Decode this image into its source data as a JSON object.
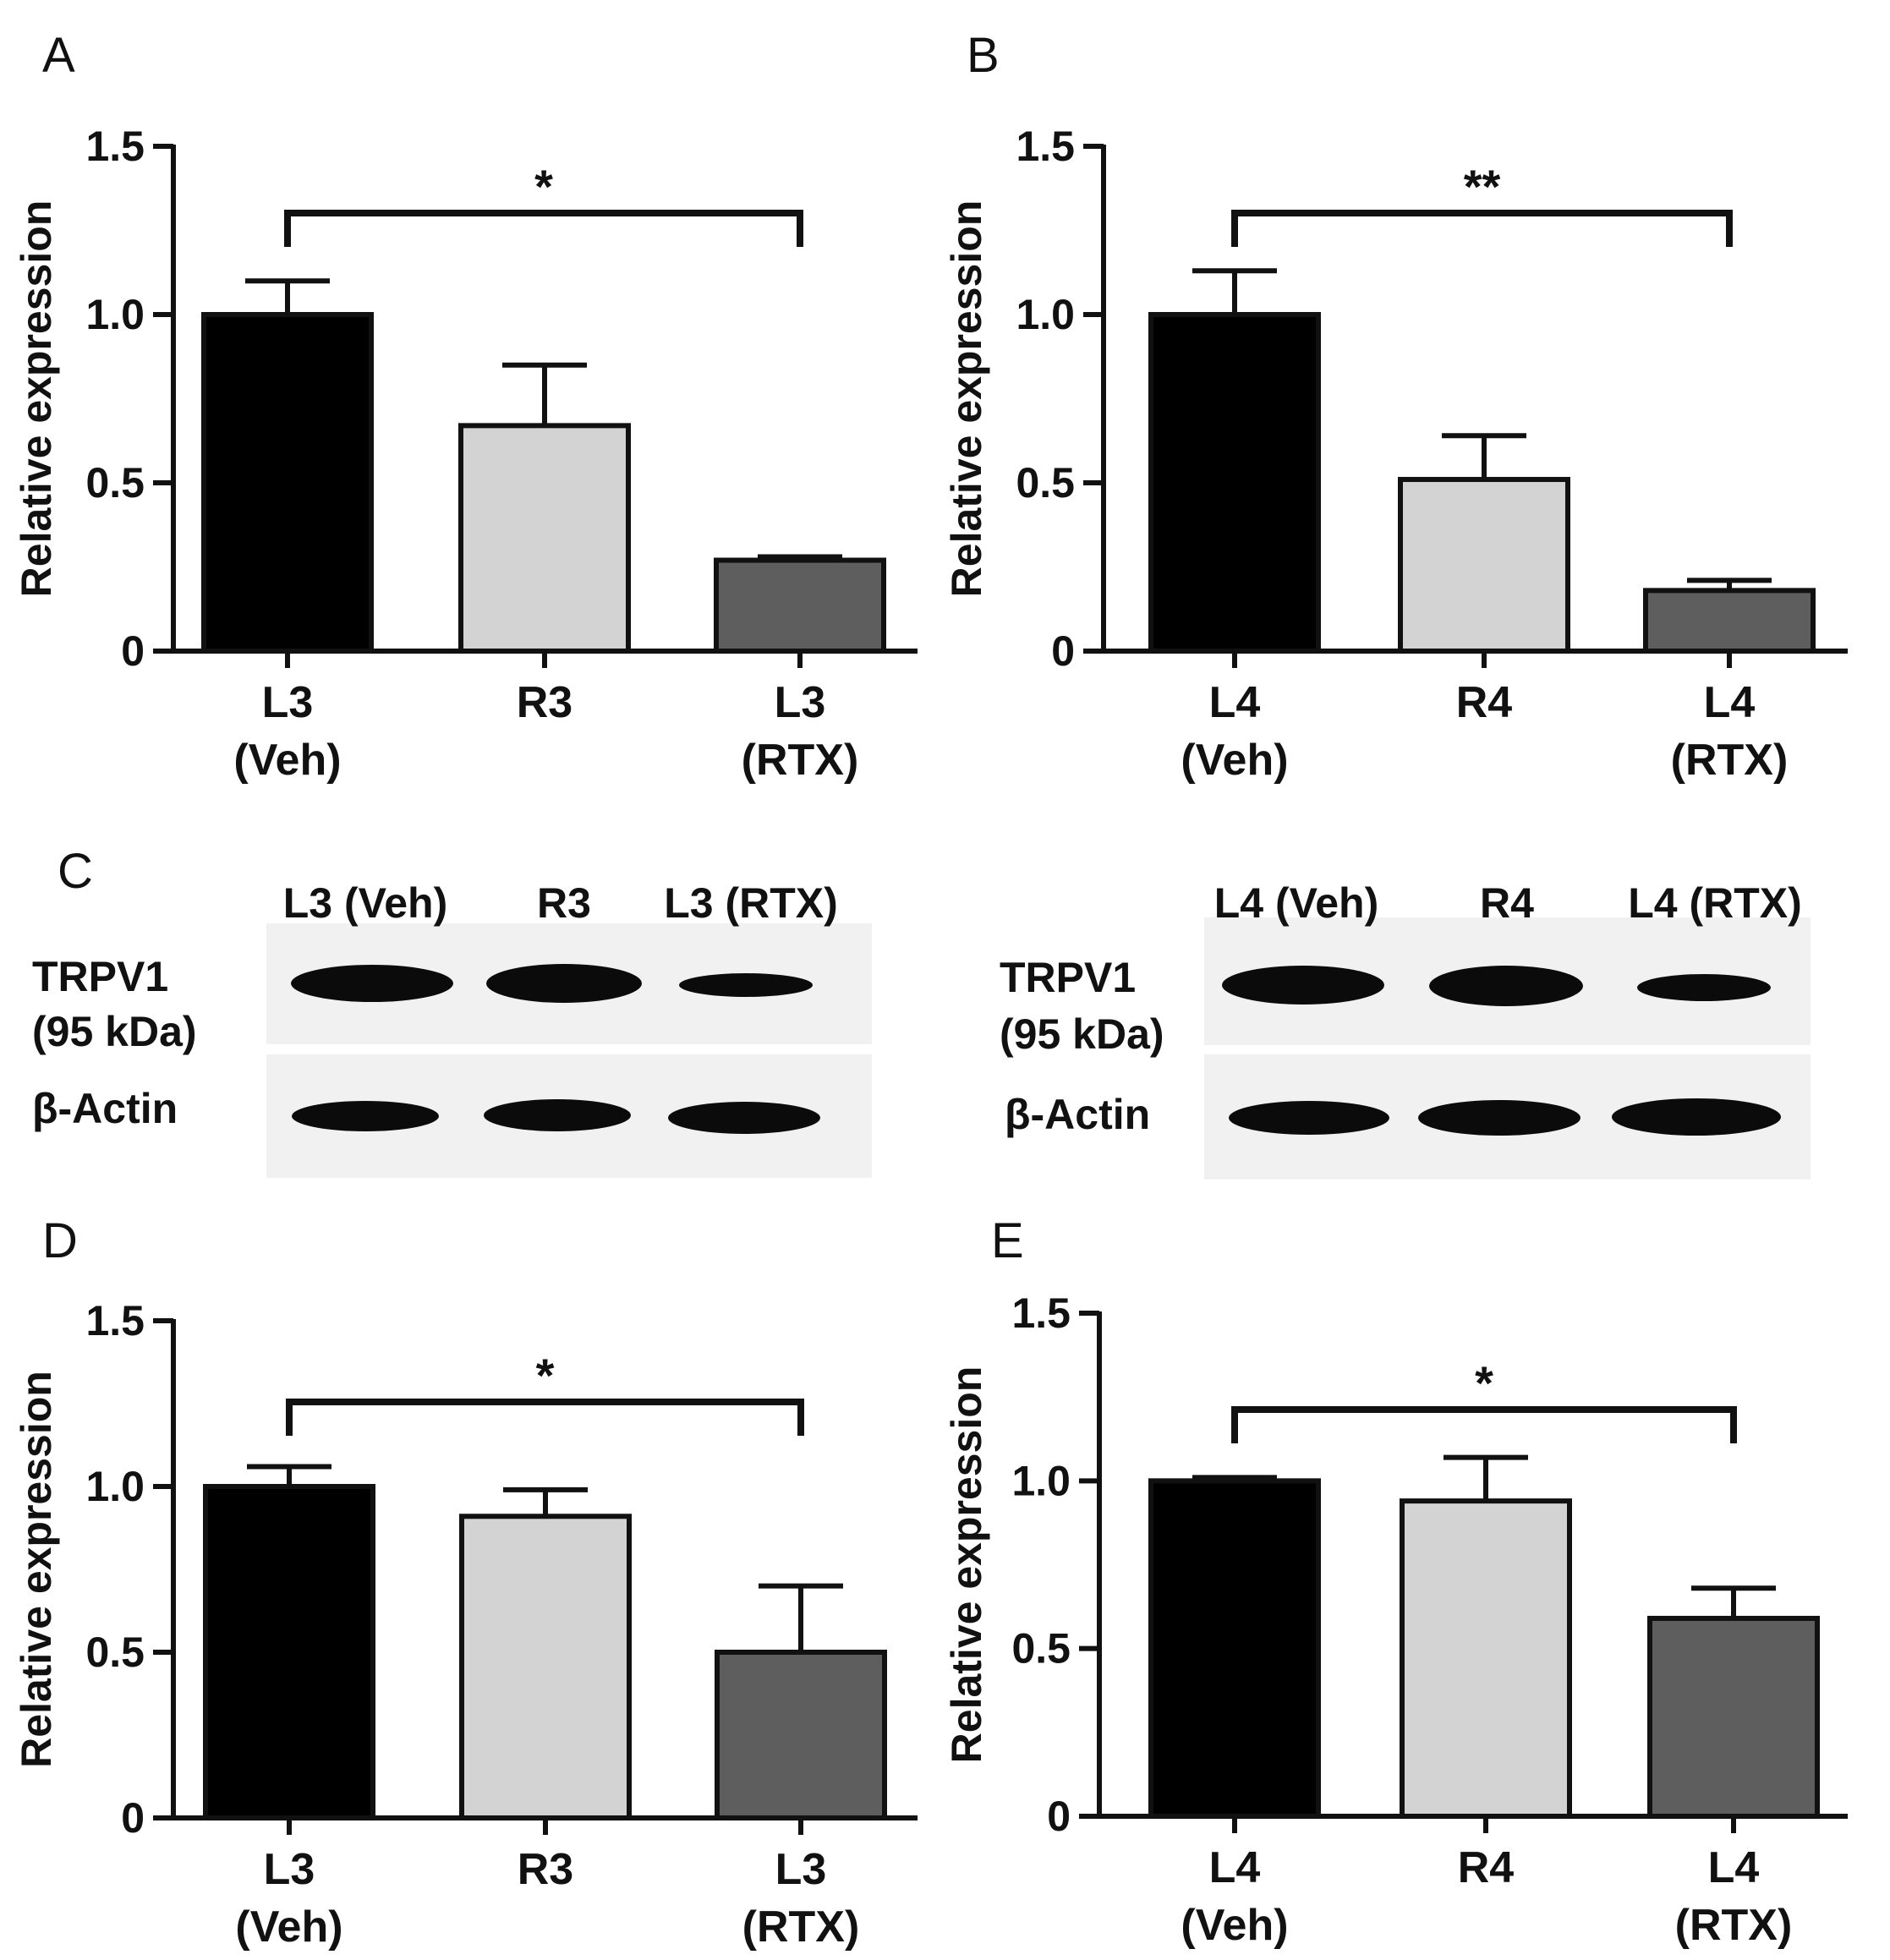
{
  "colors": {
    "veh": "#000000",
    "r": "#d3d3d3",
    "rtx": "#5e5e5e",
    "ink": "#111111",
    "blot_bg": "#f1f1f1",
    "blot_band": "#0b0b0b"
  },
  "chart_data": [
    {
      "panel": "A",
      "type": "bar",
      "ylabel": "Relative expression",
      "ylim": [
        0,
        1.5
      ],
      "yticks": [
        "0",
        "0.5",
        "1.0",
        "1.5"
      ],
      "categories": [
        {
          "line1": "L3",
          "line2": "(Veh)"
        },
        {
          "line1": "R3",
          "line2": ""
        },
        {
          "line1": "L3",
          "line2": "(RTX)"
        }
      ],
      "values": [
        1.0,
        0.67,
        0.27
      ],
      "errors": [
        0.1,
        0.18,
        0.01
      ],
      "significance": {
        "from": 0,
        "to": 2,
        "label": "*"
      }
    },
    {
      "panel": "B",
      "type": "bar",
      "ylabel": "Relative expression",
      "ylim": [
        0,
        1.5
      ],
      "yticks": [
        "0",
        "0.5",
        "1.0",
        "1.5"
      ],
      "categories": [
        {
          "line1": "L4",
          "line2": "(Veh)"
        },
        {
          "line1": "R4",
          "line2": ""
        },
        {
          "line1": "L4",
          "line2": "(RTX)"
        }
      ],
      "values": [
        1.0,
        0.51,
        0.18
      ],
      "errors": [
        0.13,
        0.13,
        0.03
      ],
      "significance": {
        "from": 0,
        "to": 2,
        "label": "**"
      }
    },
    {
      "panel": "D",
      "type": "bar",
      "ylabel": "Relative expression",
      "ylim": [
        0,
        1.5
      ],
      "yticks": [
        "0",
        "0.5",
        "1.0",
        "1.5"
      ],
      "categories": [
        {
          "line1": "L3",
          "line2": "(Veh)"
        },
        {
          "line1": "R3",
          "line2": ""
        },
        {
          "line1": "L3",
          "line2": "(RTX)"
        }
      ],
      "values": [
        1.0,
        0.91,
        0.5
      ],
      "errors": [
        0.06,
        0.08,
        0.2
      ],
      "significance": {
        "from": 0,
        "to": 2,
        "label": "*"
      }
    },
    {
      "panel": "E",
      "type": "bar",
      "ylabel": "Relative expression",
      "ylim": [
        0,
        1.5
      ],
      "yticks": [
        "0",
        "0.5",
        "1.0",
        "1.5"
      ],
      "categories": [
        {
          "line1": "L4",
          "line2": "(Veh)"
        },
        {
          "line1": "R4",
          "line2": ""
        },
        {
          "line1": "L4",
          "line2": "(RTX)"
        }
      ],
      "values": [
        1.0,
        0.94,
        0.59
      ],
      "errors": [
        0.01,
        0.13,
        0.09
      ],
      "significance": {
        "from": 0,
        "to": 2,
        "label": "*"
      }
    }
  ],
  "blot": {
    "panel": "C",
    "left": {
      "lanes": [
        "L3 (Veh)",
        "R3",
        "L3 (RTX)"
      ],
      "rows": [
        {
          "label1": "TRPV1",
          "label2": "(95 kDa)"
        },
        {
          "label1": "β-Actin",
          "label2": ""
        }
      ]
    },
    "right": {
      "lanes": [
        "L4 (Veh)",
        "R4",
        "L4 (RTX)"
      ],
      "rows": [
        {
          "label1": "TRPV1",
          "label2": "(95 kDa)"
        },
        {
          "label1": "β-Actin",
          "label2": ""
        }
      ]
    }
  }
}
